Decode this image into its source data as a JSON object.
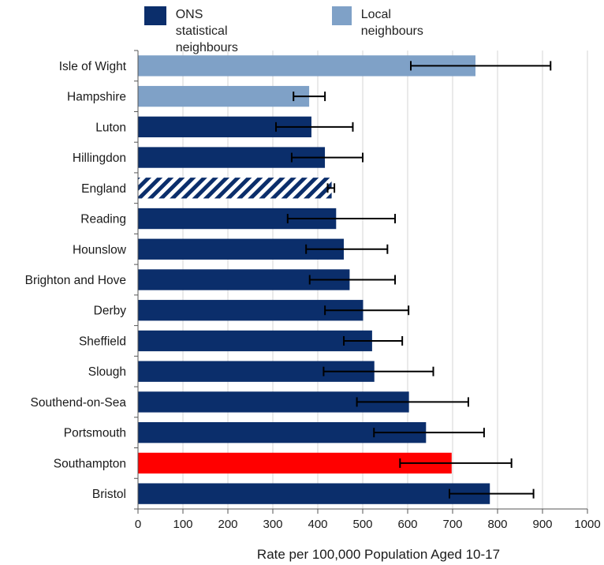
{
  "chart_data": {
    "type": "bar",
    "orientation": "horizontal",
    "xlabel": "Rate per 100,000 Population Aged 10-17",
    "xlim": [
      0,
      1000
    ],
    "xticks": [
      0,
      100,
      200,
      300,
      400,
      500,
      600,
      700,
      800,
      900,
      1000
    ],
    "grid": true,
    "legend_position": "top",
    "legend": [
      {
        "name": "ONS statistical\nneighbours",
        "color": "#0b2e6b"
      },
      {
        "name": "Local neighbours",
        "color": "#7fa1c7"
      }
    ],
    "categories": [
      "Isle of Wight",
      "Hampshire",
      "Luton",
      "Hillingdon",
      "England",
      "Reading",
      "Hounslow",
      "Brighton and Hove",
      "Derby",
      "Sheffield",
      "Slough",
      "Southend-on-Sea",
      "Portsmouth",
      "Southampton",
      "Bristol"
    ],
    "values": [
      750,
      380,
      385,
      415,
      430,
      440,
      457,
      470,
      500,
      520,
      525,
      602,
      640,
      697,
      782
    ],
    "error_low": [
      607,
      346,
      307,
      342,
      422,
      333,
      374,
      382,
      416,
      458,
      413,
      487,
      525,
      583,
      693
    ],
    "error_high": [
      918,
      416,
      478,
      500,
      437,
      572,
      555,
      572,
      602,
      588,
      657,
      735,
      770,
      831,
      880
    ],
    "bar_styles": [
      "local",
      "local",
      "ons",
      "ons",
      "england",
      "ons",
      "ons",
      "ons",
      "ons",
      "ons",
      "ons",
      "ons",
      "ons",
      "highlight",
      "ons"
    ],
    "colors": {
      "ons": "#0b2e6b",
      "local": "#7fa1c7",
      "england": "#0b2e6b",
      "highlight": "#ff0000",
      "errorbar": "#000000",
      "grid": "#d4d4d4"
    }
  }
}
